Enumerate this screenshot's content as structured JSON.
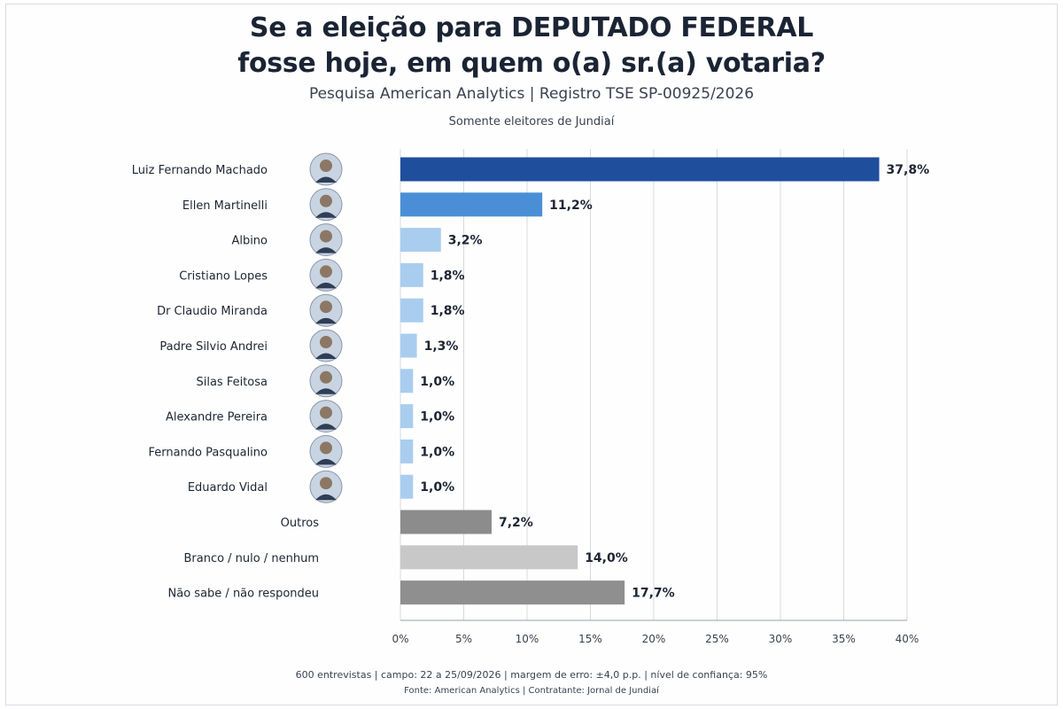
{
  "header": {
    "title_line1": "Se a eleição para DEPUTADO FEDERAL",
    "title_line2": "fosse hoje, em quem o(a) sr.(a) votaria?",
    "subtitle": "Pesquisa American Analytics | Registro TSE SP-00925/2026",
    "note": "Somente eleitores de Jundiaí"
  },
  "footer": {
    "line1": "600 entrevistas | campo: 22 a 25/09/2026 | margem de erro: ±4,0 p.p. | nível de confiança: 95%",
    "line2": "Fonte: American Analytics | Contratante: Jornal de Jundiaí"
  },
  "colors": {
    "leader": "#1f4e9c",
    "second": "#4a8fd6",
    "light": "#a9cdef",
    "outros": "#8c8c8c",
    "branco": "#c8c8c8",
    "naosabe": "#8f8f8f",
    "grid": "#d6d9de"
  },
  "chart_data": {
    "type": "bar",
    "orientation": "horizontal",
    "categories": [
      "Luiz Fernando Machado",
      "Ellen Martinelli",
      "Albino",
      "Cristiano Lopes",
      "Dr Claudio Miranda",
      "Padre Silvio Andrei",
      "Silas Feitosa",
      "Alexandre Pereira",
      "Fernando Pasqualino",
      "Eduardo Vidal",
      "Outros",
      "Branco / nulo / nenhum",
      "Não sabe / não respondeu"
    ],
    "values": [
      37.8,
      11.2,
      3.2,
      1.8,
      1.8,
      1.3,
      1.0,
      1.0,
      1.0,
      1.0,
      7.2,
      14.0,
      17.7
    ],
    "value_labels": [
      "37,8%",
      "11,2%",
      "3,2%",
      "1,8%",
      "1,8%",
      "1,3%",
      "1,0%",
      "1,0%",
      "1,0%",
      "1,0%",
      "7,2%",
      "14,0%",
      "17,7%"
    ],
    "bar_colors": [
      "leader",
      "second",
      "light",
      "light",
      "light",
      "light",
      "light",
      "light",
      "light",
      "light",
      "outros",
      "branco",
      "naosabe"
    ],
    "has_photo": [
      true,
      true,
      true,
      true,
      true,
      true,
      true,
      true,
      true,
      true,
      false,
      false,
      false
    ],
    "xlim": [
      0,
      40
    ],
    "xticks": [
      0,
      5,
      10,
      15,
      20,
      25,
      30,
      35,
      40
    ],
    "xtick_labels": [
      "0%",
      "5%",
      "10%",
      "15%",
      "20%",
      "25%",
      "30%",
      "35%",
      "40%"
    ],
    "grid": true,
    "legend": "none"
  }
}
